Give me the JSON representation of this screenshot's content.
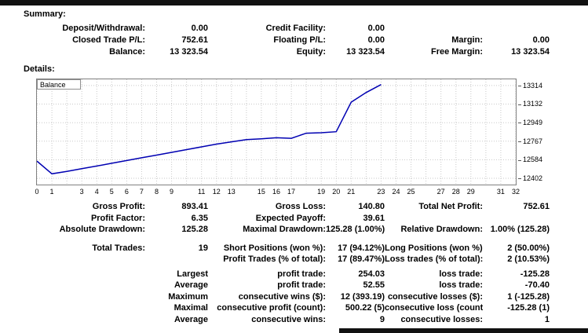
{
  "summary": {
    "heading": "Summary:",
    "rows": [
      {
        "c1l": "Deposit/Withdrawal:",
        "c1v": "0.00",
        "c2l": "Credit Facility:",
        "c2v": "0.00",
        "c3l": "",
        "c3v": "",
        "gap": 0
      },
      {
        "c1l": "Closed Trade P/L:",
        "c1v": "752.61",
        "c2l": "Floating P/L:",
        "c2v": "0.00",
        "c3l": "Margin:",
        "c3v": "0.00",
        "gap": 0
      },
      {
        "c1l": "Balance:",
        "c1v": "13 323.54",
        "c2l": "Equity:",
        "c2v": "13 323.54",
        "c3l": "Free Margin:",
        "c3v": "13 323.54",
        "gap": 0
      }
    ]
  },
  "details": {
    "heading": "Details:"
  },
  "chart_data": {
    "type": "line",
    "title": "",
    "series_label": "Balance",
    "line_color": "#0000b2",
    "grid_color": "#c9c9c9",
    "legend_position": "top-left",
    "grid": true,
    "x_max": 32,
    "x_tick_labels": [
      "0",
      "1",
      "3",
      "4",
      "5",
      "6",
      "7",
      "8",
      "9",
      "11",
      "12",
      "13",
      "15",
      "16",
      "17",
      "19",
      "20",
      "21",
      "23",
      "24",
      "25",
      "27",
      "28",
      "29",
      "31",
      "32"
    ],
    "y_ticks": [
      12402,
      12584,
      12767,
      12949,
      13132,
      13314
    ],
    "y_range": [
      12340,
      13375
    ],
    "balance": [
      12570.93,
      12445.65,
      12470,
      12496,
      12522,
      12549,
      12576,
      12603,
      12630,
      12657,
      12684,
      12711,
      12738,
      12760,
      12782,
      12790,
      12800,
      12795,
      12845,
      12850,
      12860,
      13150,
      13245,
      13323.54
    ]
  },
  "stats": {
    "rows": [
      {
        "c1l": "Gross Profit:",
        "c1v": "893.41",
        "c2l": "Gross Loss:",
        "c2v": "140.80",
        "c3l": "Total Net Profit:",
        "c3v": "752.61",
        "gap": 0
      },
      {
        "c1l": "Profit Factor:",
        "c1v": "6.35",
        "c2l": "Expected Payoff:",
        "c2v": "39.61",
        "c3l": "",
        "c3v": "",
        "gap": 0
      },
      {
        "c1l": "Absolute Drawdown:",
        "c1v": "125.28",
        "c2l": "Maximal Drawdown:",
        "c2v": "125.28 (1.00%)",
        "c3l": "Relative Drawdown:",
        "c3v": "1.00% (125.28)",
        "gap": 0
      },
      {
        "c1l": "Total Trades:",
        "c1v": "19",
        "c2l": "Short Positions (won %):",
        "c2v": "17 (94.12%)",
        "c3l": "Long Positions (won %):",
        "c3v": "2 (50.00%)",
        "gap": 9
      },
      {
        "c1l": "",
        "c1v": "",
        "c2l": "Profit Trades (% of total):",
        "c2v": "17 (89.47%)",
        "c3l": "Loss trades (% of total):",
        "c3v": "2 (10.53%)",
        "gap": 0
      },
      {
        "c1l": "",
        "c1v": "Largest",
        "c2l": "profit trade:",
        "c2v": "254.03",
        "c3l": "loss trade:",
        "c3v": "-125.28",
        "gap": 4
      },
      {
        "c1l": "",
        "c1v": "Average",
        "c2l": "profit trade:",
        "c2v": "52.55",
        "c3l": "loss trade:",
        "c3v": "-70.40",
        "gap": 0
      },
      {
        "c1l": "",
        "c1v": "Maximum",
        "c2l": "consecutive wins ($):",
        "c2v": "12 (393.19)",
        "c3l": "consecutive losses ($):",
        "c3v": "1 (-125.28)",
        "gap": 0
      },
      {
        "c1l": "",
        "c1v": "Maximal",
        "c2l": "consecutive profit (count):",
        "c2v": "500.22 (5)",
        "c3l": "consecutive loss (count):",
        "c3v": "-125.28 (1)",
        "gap": 0
      },
      {
        "c1l": "",
        "c1v": "Average",
        "c2l": "consecutive wins:",
        "c2v": "9",
        "c3l": "consecutive losses:",
        "c3v": "1",
        "gap": 0
      }
    ]
  }
}
